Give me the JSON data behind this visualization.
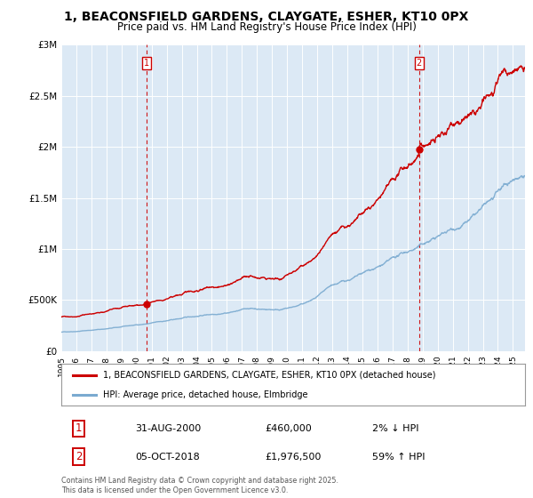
{
  "title": "1, BEACONSFIELD GARDENS, CLAYGATE, ESHER, KT10 0PX",
  "subtitle": "Price paid vs. HM Land Registry's House Price Index (HPI)",
  "title_fontsize": 10,
  "subtitle_fontsize": 8.5,
  "plot_bg_color": "#dce9f5",
  "fig_bg_color": "#ffffff",
  "red_line_color": "#cc0000",
  "blue_line_color": "#7aaad0",
  "dashed_line_color": "#cc0000",
  "marker1_x": 2000.67,
  "marker1_y": 460000,
  "marker2_x": 2018.76,
  "marker2_y": 1976500,
  "xmin": 1995.0,
  "xmax": 2025.8,
  "ymin": 0,
  "ymax": 3000000,
  "yticks": [
    0,
    500000,
    1000000,
    1500000,
    2000000,
    2500000,
    3000000
  ],
  "ytick_labels": [
    "£0",
    "£500K",
    "£1M",
    "£1.5M",
    "£2M",
    "£2.5M",
    "£3M"
  ],
  "legend_red_label": "1, BEACONSFIELD GARDENS, CLAYGATE, ESHER, KT10 0PX (detached house)",
  "legend_blue_label": "HPI: Average price, detached house, Elmbridge",
  "annotation1_num": "1",
  "annotation1_date": "31-AUG-2000",
  "annotation1_price": "£460,000",
  "annotation1_hpi": "2% ↓ HPI",
  "annotation2_num": "2",
  "annotation2_date": "05-OCT-2018",
  "annotation2_price": "£1,976,500",
  "annotation2_hpi": "59% ↑ HPI",
  "footer": "Contains HM Land Registry data © Crown copyright and database right 2025.\nThis data is licensed under the Open Government Licence v3.0."
}
